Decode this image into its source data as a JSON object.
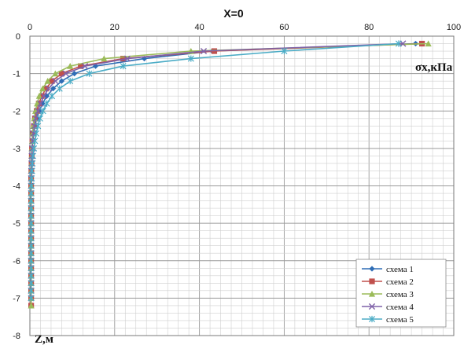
{
  "chart_data": {
    "type": "line",
    "title": "X=0",
    "xlabel": "σx,кПа",
    "ylabel": "Z,м",
    "xlim": [
      0,
      100
    ],
    "ylim": [
      -8,
      0
    ],
    "x_ticks": [
      "0",
      "20",
      "40",
      "60",
      "80",
      "100"
    ],
    "y_ticks": [
      "0",
      "-1",
      "-2",
      "-3",
      "-4",
      "-5",
      "-6",
      "-7",
      "-8"
    ],
    "grid": true,
    "legend_position": "bottom-right",
    "series": [
      {
        "name": "схема 1",
        "color": "#2e6db5",
        "marker": "diamond",
        "x": [
          91,
          43,
          27,
          15.5,
          10.5,
          7.5,
          5.5,
          4.0,
          3.0,
          2.2,
          1.6,
          1.2,
          0.9,
          0.7,
          0.55,
          0.45,
          0.4,
          0.35,
          0.3,
          0.3,
          0.3,
          0.3,
          0.3,
          0.3,
          0.3,
          0.3,
          0.3,
          0.3,
          0.3,
          0.3,
          0.3,
          0.3,
          0.3,
          0.3,
          0.3
        ],
        "y": [
          -0.2,
          -0.4,
          -0.6,
          -0.8,
          -1.0,
          -1.2,
          -1.4,
          -1.6,
          -1.8,
          -2.0,
          -2.2,
          -2.4,
          -2.6,
          -2.8,
          -3.0,
          -3.2,
          -3.4,
          -3.6,
          -3.8,
          -4.0,
          -4.2,
          -4.4,
          -4.6,
          -4.8,
          -5.0,
          -5.2,
          -5.4,
          -5.6,
          -5.8,
          -6.0,
          -6.2,
          -6.4,
          -6.6,
          -6.8,
          -7.0
        ]
      },
      {
        "name": "схема 2",
        "color": "#c0504d",
        "marker": "square",
        "x": [
          92.5,
          43.5,
          22,
          12,
          7.5,
          5.2,
          3.8,
          2.8,
          2.1,
          1.6,
          1.2,
          0.95,
          0.75,
          0.6,
          0.5,
          0.45,
          0.4,
          0.35,
          0.3,
          0.3,
          0.3,
          0.3,
          0.3,
          0.3,
          0.3,
          0.3,
          0.3,
          0.3,
          0.3,
          0.3,
          0.3,
          0.3,
          0.3,
          0.3,
          0.3,
          0.3
        ],
        "y": [
          -0.2,
          -0.4,
          -0.6,
          -0.8,
          -1.0,
          -1.2,
          -1.4,
          -1.6,
          -1.8,
          -2.0,
          -2.2,
          -2.4,
          -2.6,
          -2.8,
          -3.0,
          -3.2,
          -3.4,
          -3.6,
          -3.8,
          -4.0,
          -4.2,
          -4.4,
          -4.6,
          -4.8,
          -5.0,
          -5.2,
          -5.4,
          -5.6,
          -5.8,
          -6.0,
          -6.2,
          -6.4,
          -6.6,
          -6.8,
          -7.0,
          -7.2
        ]
      },
      {
        "name": "схема 3",
        "color": "#9bbb59",
        "marker": "triangle",
        "x": [
          94,
          38,
          17.5,
          9.5,
          6.0,
          4.2,
          3.0,
          2.2,
          1.7,
          1.3,
          1.0,
          0.8,
          0.65,
          0.55,
          0.45,
          0.4,
          0.35,
          0.3,
          0.3,
          0.3,
          0.3,
          0.3,
          0.3,
          0.3,
          0.3,
          0.3,
          0.3,
          0.3,
          0.3,
          0.3,
          0.3,
          0.3,
          0.3,
          0.3,
          0.3,
          0.3
        ],
        "y": [
          -0.2,
          -0.4,
          -0.6,
          -0.8,
          -1.0,
          -1.2,
          -1.4,
          -1.6,
          -1.8,
          -2.0,
          -2.2,
          -2.4,
          -2.6,
          -2.8,
          -3.0,
          -3.2,
          -3.4,
          -3.6,
          -3.8,
          -4.0,
          -4.2,
          -4.4,
          -4.6,
          -4.8,
          -5.0,
          -5.2,
          -5.4,
          -5.6,
          -5.8,
          -6.0,
          -6.2,
          -6.4,
          -6.6,
          -6.8,
          -7.0,
          -7.2
        ]
      },
      {
        "name": "схема 4",
        "color": "#7f62a8",
        "marker": "x",
        "x": [
          88,
          41,
          23,
          13,
          8.5,
          6.0,
          4.4,
          3.3,
          2.5,
          1.9,
          1.4,
          1.1,
          0.85,
          0.65,
          0.55,
          0.45,
          0.4,
          0.35,
          0.3,
          0.3,
          0.3,
          0.3,
          0.3,
          0.3,
          0.3,
          0.3,
          0.3,
          0.3,
          0.3,
          0.3,
          0.3,
          0.3,
          0.3,
          0.3,
          0.3
        ],
        "y": [
          -0.2,
          -0.4,
          -0.6,
          -0.8,
          -1.0,
          -1.2,
          -1.4,
          -1.6,
          -1.8,
          -2.0,
          -2.2,
          -2.4,
          -2.6,
          -2.8,
          -3.0,
          -3.2,
          -3.4,
          -3.6,
          -3.8,
          -4.0,
          -4.2,
          -4.4,
          -4.6,
          -4.8,
          -5.0,
          -5.2,
          -5.4,
          -5.6,
          -5.8,
          -6.0,
          -6.2,
          -6.4,
          -6.6,
          -6.8,
          -7.0
        ]
      },
      {
        "name": "схема 5",
        "color": "#4bacc6",
        "marker": "asterisk",
        "x": [
          87,
          60,
          38,
          22,
          14,
          9.5,
          7.0,
          5.2,
          4.0,
          3.1,
          2.4,
          1.9,
          1.5,
          1.2,
          0.95,
          0.75,
          0.6,
          0.5,
          0.42,
          0.36,
          0.32,
          0.3,
          0.3,
          0.3,
          0.3,
          0.3,
          0.3,
          0.3,
          0.3,
          0.3,
          0.3,
          0.3,
          0.3,
          0.3,
          0.3
        ],
        "y": [
          -0.2,
          -0.4,
          -0.6,
          -0.8,
          -1.0,
          -1.2,
          -1.4,
          -1.6,
          -1.8,
          -2.0,
          -2.2,
          -2.4,
          -2.6,
          -2.8,
          -3.0,
          -3.2,
          -3.4,
          -3.6,
          -3.8,
          -4.0,
          -4.2,
          -4.4,
          -4.6,
          -4.8,
          -5.0,
          -5.2,
          -5.4,
          -5.6,
          -5.8,
          -6.0,
          -6.2,
          -6.4,
          -6.6,
          -6.8,
          -7.0
        ]
      }
    ]
  }
}
